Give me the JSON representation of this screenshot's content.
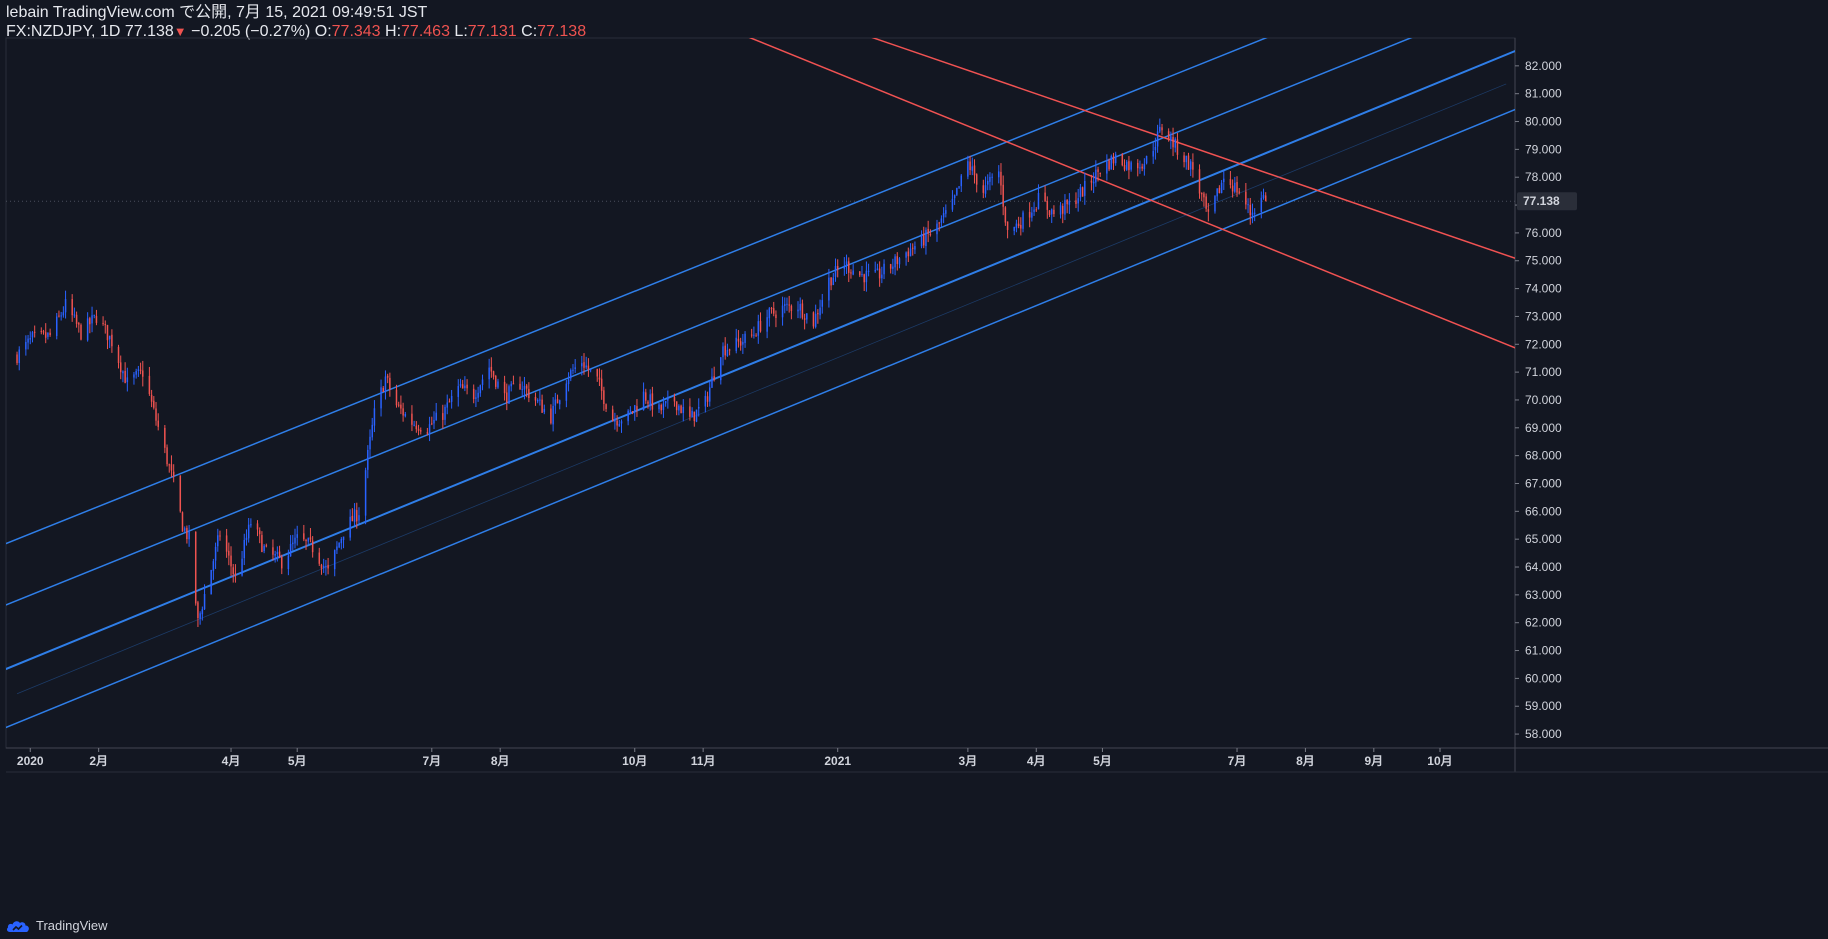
{
  "header": {
    "line1": "lebain TradingView.com で公開, 7月 15, 2021 09:49:51 JST",
    "symbol": "FX:NZDJPY, 1D 77.138",
    "down_glyph": "▼",
    "change": " −0.205 (−0.27%) ",
    "open_label": "O:",
    "open": "77.343",
    "high_label": " H:",
    "high": "77.463",
    "low_label": " L:",
    "low": "77.131",
    "close_label": " C:",
    "close": "77.138"
  },
  "brand": {
    "name": "TradingView",
    "icon": "tradingview-cloud-icon"
  },
  "colors": {
    "bg": "#131722",
    "up": "#2962ff",
    "down": "#ef5350",
    "channel": "#2f7ee8",
    "resistance": "#f05252",
    "text": "#d1d4dc"
  },
  "chart_data": {
    "type": "candlestick",
    "symbol": "FX:NZDJPY",
    "interval": "1D",
    "ylim": [
      57.5,
      83.0
    ],
    "y_ticks": [
      "82.000",
      "81.000",
      "80.000",
      "79.000",
      "78.000",
      "77.000",
      "76.000",
      "75.000",
      "74.000",
      "73.000",
      "72.000",
      "71.000",
      "70.000",
      "69.000",
      "68.000",
      "67.000",
      "66.000",
      "65.000",
      "64.000",
      "63.000",
      "62.000",
      "61.000",
      "60.000",
      "59.000",
      "58.000"
    ],
    "last_price": "77.138",
    "x_ticks": [
      "2020",
      "2月",
      "4月",
      "5月",
      "7月",
      "8月",
      "10月",
      "11月",
      "2021",
      "3月",
      "4月",
      "5月",
      "7月",
      "8月",
      "9月",
      "10月"
    ],
    "close_path": [
      [
        "2019-12-26",
        71.6
      ],
      [
        "2020-01-02",
        72.2
      ],
      [
        "2020-01-10",
        72.3
      ],
      [
        "2020-01-17",
        73.4
      ],
      [
        "2020-01-24",
        72.4
      ],
      [
        "2020-01-31",
        73.0
      ],
      [
        "2020-02-07",
        72.1
      ],
      [
        "2020-02-14",
        70.6
      ],
      [
        "2020-02-21",
        71.0
      ],
      [
        "2020-02-28",
        69.0
      ],
      [
        "2020-03-06",
        67.0
      ],
      [
        "2020-03-10",
        65.5
      ],
      [
        "2020-03-13",
        65.0
      ],
      [
        "2020-03-17",
        62.0
      ],
      [
        "2020-03-20",
        63.0
      ],
      [
        "2020-03-27",
        65.2
      ],
      [
        "2020-04-03",
        63.6
      ],
      [
        "2020-04-10",
        65.6
      ],
      [
        "2020-04-17",
        64.5
      ],
      [
        "2020-04-24",
        64.2
      ],
      [
        "2020-05-01",
        65.0
      ],
      [
        "2020-05-08",
        64.7
      ],
      [
        "2020-05-15",
        63.8
      ],
      [
        "2020-05-22",
        65.3
      ],
      [
        "2020-05-29",
        66.0
      ],
      [
        "2020-06-05",
        69.5
      ],
      [
        "2020-06-10",
        70.8
      ],
      [
        "2020-06-15",
        69.8
      ],
      [
        "2020-06-22",
        69.2
      ],
      [
        "2020-06-29",
        69.0
      ],
      [
        "2020-07-06",
        69.5
      ],
      [
        "2020-07-13",
        70.4
      ],
      [
        "2020-07-20",
        70.2
      ],
      [
        "2020-07-27",
        71.2
      ],
      [
        "2020-08-03",
        70.1
      ],
      [
        "2020-08-10",
        70.6
      ],
      [
        "2020-08-17",
        70.0
      ],
      [
        "2020-08-24",
        69.4
      ],
      [
        "2020-08-31",
        70.8
      ],
      [
        "2020-09-07",
        71.4
      ],
      [
        "2020-09-14",
        70.7
      ],
      [
        "2020-09-21",
        69.3
      ],
      [
        "2020-09-28",
        69.4
      ],
      [
        "2020-10-05",
        70.2
      ],
      [
        "2020-10-12",
        69.6
      ],
      [
        "2020-10-19",
        70.0
      ],
      [
        "2020-10-26",
        69.3
      ],
      [
        "2020-11-02",
        69.9
      ],
      [
        "2020-11-09",
        71.8
      ],
      [
        "2020-11-16",
        72.0
      ],
      [
        "2020-11-23",
        72.3
      ],
      [
        "2020-11-30",
        73.0
      ],
      [
        "2020-12-07",
        73.3
      ],
      [
        "2020-12-14",
        73.4
      ],
      [
        "2020-12-21",
        72.8
      ],
      [
        "2020-12-28",
        74.3
      ],
      [
        "2021-01-04",
        74.9
      ],
      [
        "2021-01-11",
        74.5
      ],
      [
        "2021-01-18",
        74.4
      ],
      [
        "2021-01-25",
        74.8
      ],
      [
        "2021-02-01",
        75.3
      ],
      [
        "2021-02-08",
        75.7
      ],
      [
        "2021-02-15",
        76.2
      ],
      [
        "2021-02-22",
        77.0
      ],
      [
        "2021-03-01",
        78.5
      ],
      [
        "2021-03-08",
        77.5
      ],
      [
        "2021-03-15",
        78.2
      ],
      [
        "2021-03-19",
        76.0
      ],
      [
        "2021-03-26",
        76.5
      ],
      [
        "2021-04-02",
        77.2
      ],
      [
        "2021-04-09",
        76.7
      ],
      [
        "2021-04-16",
        77.0
      ],
      [
        "2021-04-23",
        77.6
      ],
      [
        "2021-04-30",
        78.3
      ],
      [
        "2021-05-07",
        78.7
      ],
      [
        "2021-05-14",
        78.4
      ],
      [
        "2021-05-21",
        78.6
      ],
      [
        "2021-05-28",
        79.8
      ],
      [
        "2021-06-04",
        79.0
      ],
      [
        "2021-06-11",
        78.3
      ],
      [
        "2021-06-18",
        76.5
      ],
      [
        "2021-06-25",
        78.0
      ],
      [
        "2021-07-02",
        77.5
      ],
      [
        "2021-07-07",
        76.7
      ],
      [
        "2021-07-13",
        77.3
      ],
      [
        "2021-07-14",
        77.14
      ]
    ],
    "drawings": [
      {
        "name": "channel-upper",
        "color": "#2f7ee8",
        "points": [
          [
            "2019-12-26",
            65.0
          ],
          [
            "2021-07-14",
            83.0
          ]
        ]
      },
      {
        "name": "channel-upper-mid",
        "color": "#2f7ee8",
        "points": [
          [
            "2019-12-26",
            62.8
          ],
          [
            "2021-07-14",
            80.9
          ]
        ]
      },
      {
        "name": "channel-median",
        "color": "#2f7ee8",
        "points": [
          [
            "2019-12-26",
            60.5
          ],
          [
            "2021-10-31",
            82.4
          ]
        ]
      },
      {
        "name": "channel-lower",
        "color": "#2f7ee8",
        "points": [
          [
            "2019-12-26",
            58.4
          ],
          [
            "2021-10-31",
            80.3
          ]
        ]
      },
      {
        "name": "resistance-upper",
        "color": "#f05252",
        "points": [
          [
            "2021-02-01",
            82.6
          ],
          [
            "2021-10-31",
            75.2
          ]
        ]
      },
      {
        "name": "resistance-lower",
        "color": "#f05252",
        "points": [
          [
            "2020-12-05",
            82.6
          ],
          [
            "2021-10-31",
            72.0
          ]
        ]
      }
    ]
  }
}
